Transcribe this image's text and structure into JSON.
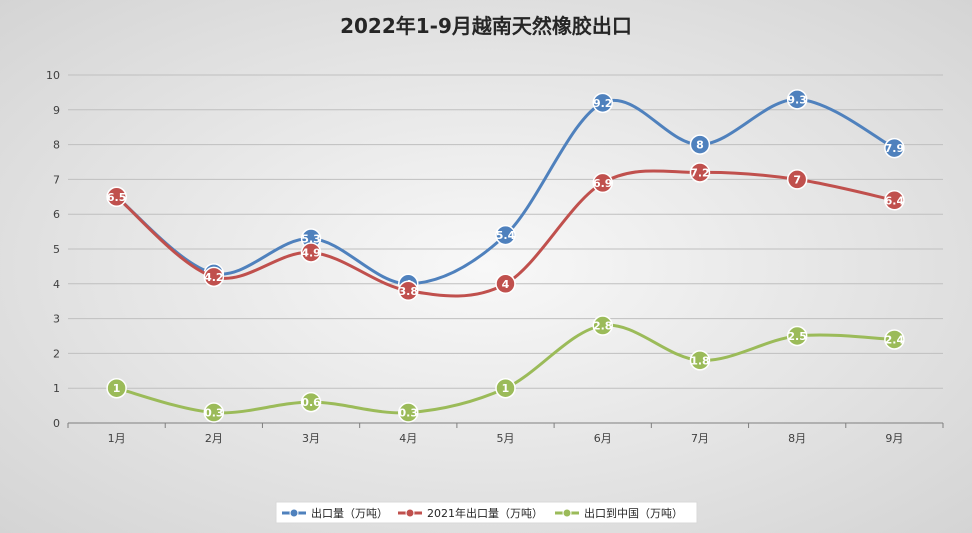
{
  "chart_data": {
    "type": "line",
    "title": "2022年1-9月越南天然橡胶出口",
    "xlabel": "",
    "ylabel": "",
    "categories": [
      "1月",
      "2月",
      "3月",
      "4月",
      "5月",
      "6月",
      "7月",
      "8月",
      "9月"
    ],
    "ylim": [
      0,
      10
    ],
    "yticks": [
      0,
      1,
      2,
      3,
      4,
      5,
      6,
      7,
      8,
      9,
      10
    ],
    "grid": true,
    "smooth": true,
    "data_labels": true,
    "legend_position": "bottom",
    "series": [
      {
        "name": "出口量（万吨）",
        "color": "#4f81bd",
        "values": [
          6.5,
          4.3,
          5.3,
          4,
          5.4,
          9.2,
          8,
          9.3,
          7.9
        ]
      },
      {
        "name": "2021年出口量（万吨）",
        "color": "#c0504d",
        "values": [
          6.5,
          4.2,
          4.9,
          3.8,
          4,
          6.9,
          7.2,
          7,
          6.4
        ]
      },
      {
        "name": "出口到中国（万吨）",
        "color": "#9bbb59",
        "values": [
          1,
          0.3,
          0.6,
          0.3,
          1,
          2.8,
          1.8,
          2.5,
          2.4
        ]
      }
    ]
  }
}
